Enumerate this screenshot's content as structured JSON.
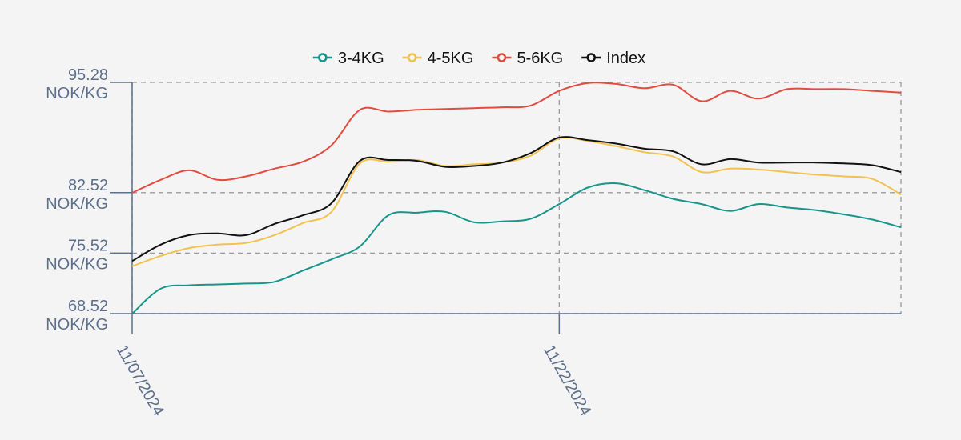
{
  "chart_data": {
    "type": "line",
    "x": [
      "11/07/2024",
      "11/08/2024",
      "11/09/2024",
      "11/10/2024",
      "11/11/2024",
      "11/12/2024",
      "11/13/2024",
      "11/14/2024",
      "11/15/2024",
      "11/16/2024",
      "11/17/2024",
      "11/18/2024",
      "11/19/2024",
      "11/20/2024",
      "11/21/2024",
      "11/22/2024",
      "11/23/2024",
      "11/24/2024",
      "11/25/2024",
      "11/26/2024",
      "11/27/2024",
      "11/28/2024",
      "11/29/2024",
      "11/30/2024",
      "12/01/2024",
      "12/02/2024",
      "12/03/2024",
      "12/04/2024"
    ],
    "series": [
      {
        "name": "3-4KG",
        "color": "#16968a",
        "values": [
          68.5,
          71.4,
          71.8,
          71.9,
          72.0,
          72.2,
          73.5,
          74.8,
          76.3,
          79.9,
          80.2,
          80.3,
          79.1,
          79.2,
          79.5,
          81.2,
          83.1,
          83.6,
          82.8,
          81.8,
          81.2,
          80.4,
          81.2,
          80.8,
          80.5,
          80.0,
          79.4,
          78.5
        ]
      },
      {
        "name": "4-5KG",
        "color": "#f2c14e",
        "values": [
          74.0,
          75.2,
          76.1,
          76.5,
          76.7,
          77.6,
          79.0,
          80.3,
          85.9,
          86.1,
          86.3,
          85.6,
          85.8,
          86.0,
          86.8,
          88.8,
          88.5,
          87.9,
          87.2,
          86.7,
          84.9,
          85.3,
          85.2,
          84.9,
          84.6,
          84.4,
          84.1,
          82.3
        ]
      },
      {
        "name": "5-6KG",
        "color": "#e34b3f",
        "values": [
          82.5,
          84.0,
          85.1,
          84.0,
          84.4,
          85.3,
          86.1,
          88.0,
          92.1,
          91.9,
          92.1,
          92.2,
          92.3,
          92.4,
          92.6,
          94.3,
          95.2,
          95.1,
          94.6,
          95.0,
          93.1,
          94.3,
          93.4,
          94.5,
          94.5,
          94.5,
          94.3,
          94.1
        ]
      },
      {
        "name": "Index",
        "color": "#111111",
        "values": [
          74.6,
          76.5,
          77.6,
          77.8,
          77.6,
          78.9,
          79.9,
          81.3,
          86.2,
          86.3,
          86.2,
          85.5,
          85.6,
          86.0,
          87.1,
          88.9,
          88.6,
          88.2,
          87.6,
          87.3,
          85.8,
          86.4,
          86.0,
          86.0,
          86.0,
          85.9,
          85.7,
          84.9
        ]
      }
    ],
    "ylim": [
      68.52,
      95.28
    ],
    "yticks": [
      68.52,
      75.52,
      82.52,
      95.28
    ],
    "ytick_labels": [
      [
        "68.52",
        "NOK/KG"
      ],
      [
        "75.52",
        "NOK/KG"
      ],
      [
        "82.52",
        "NOK/KG"
      ],
      [
        "95.28",
        "NOK/KG"
      ]
    ],
    "xticks": [
      "11/07/2024",
      "11/22/2024"
    ],
    "grid": true,
    "legend_position": "top-center"
  }
}
